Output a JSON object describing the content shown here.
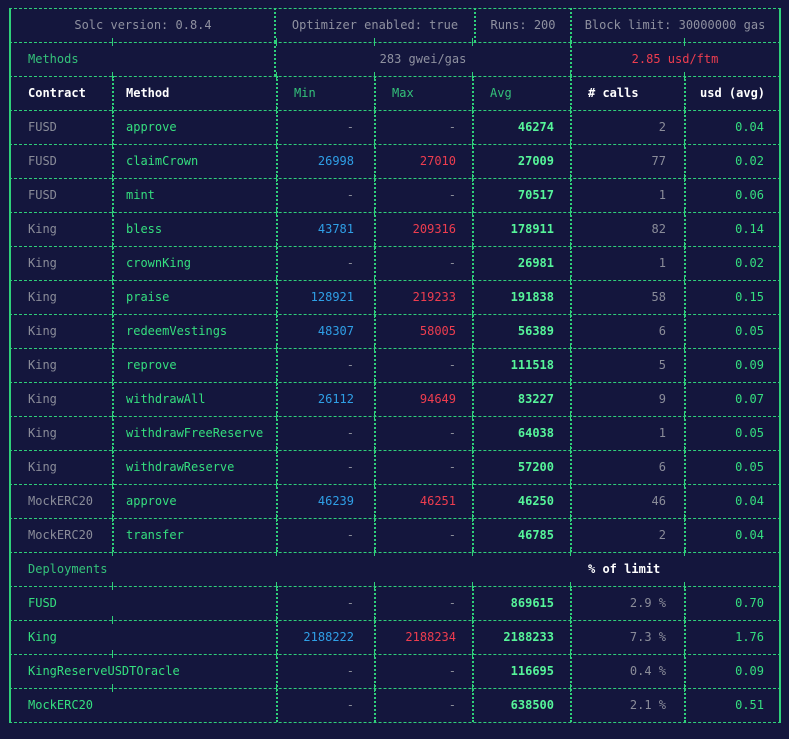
{
  "header": {
    "solc_version": "Solc version: 0.8.4",
    "optimizer": "Optimizer enabled: true",
    "runs": "Runs: 200",
    "block_limit": "Block limit: 30000000 gas"
  },
  "methods_bar": {
    "label": "Methods",
    "gas_price": "283 gwei/gas",
    "token_price": "2.85 usd/ftm"
  },
  "columns": {
    "contract": "Contract",
    "method": "Method",
    "min": "Min",
    "max": "Max",
    "avg": "Avg",
    "calls": "# calls",
    "usd": "usd (avg)"
  },
  "methods": [
    {
      "contract": "FUSD",
      "method": "approve",
      "min": "-",
      "max": "-",
      "avg": "46274",
      "calls": "2",
      "usd": "0.04"
    },
    {
      "contract": "FUSD",
      "method": "claimCrown",
      "min": "26998",
      "max": "27010",
      "avg": "27009",
      "calls": "77",
      "usd": "0.02"
    },
    {
      "contract": "FUSD",
      "method": "mint",
      "min": "-",
      "max": "-",
      "avg": "70517",
      "calls": "1",
      "usd": "0.06"
    },
    {
      "contract": "King",
      "method": "bless",
      "min": "43781",
      "max": "209316",
      "avg": "178911",
      "calls": "82",
      "usd": "0.14"
    },
    {
      "contract": "King",
      "method": "crownKing",
      "min": "-",
      "max": "-",
      "avg": "26981",
      "calls": "1",
      "usd": "0.02"
    },
    {
      "contract": "King",
      "method": "praise",
      "min": "128921",
      "max": "219233",
      "avg": "191838",
      "calls": "58",
      "usd": "0.15"
    },
    {
      "contract": "King",
      "method": "redeemVestings",
      "min": "48307",
      "max": "58005",
      "avg": "56389",
      "calls": "6",
      "usd": "0.05"
    },
    {
      "contract": "King",
      "method": "reprove",
      "min": "-",
      "max": "-",
      "avg": "111518",
      "calls": "5",
      "usd": "0.09"
    },
    {
      "contract": "King",
      "method": "withdrawAll",
      "min": "26112",
      "max": "94649",
      "avg": "83227",
      "calls": "9",
      "usd": "0.07"
    },
    {
      "contract": "King",
      "method": "withdrawFreeReserve",
      "min": "-",
      "max": "-",
      "avg": "64038",
      "calls": "1",
      "usd": "0.05"
    },
    {
      "contract": "King",
      "method": "withdrawReserve",
      "min": "-",
      "max": "-",
      "avg": "57200",
      "calls": "6",
      "usd": "0.05"
    },
    {
      "contract": "MockERC20",
      "method": "approve",
      "min": "46239",
      "max": "46251",
      "avg": "46250",
      "calls": "46",
      "usd": "0.04"
    },
    {
      "contract": "MockERC20",
      "method": "transfer",
      "min": "-",
      "max": "-",
      "avg": "46785",
      "calls": "2",
      "usd": "0.04"
    }
  ],
  "deployments_bar": {
    "label": "Deployments",
    "percent_label": "% of limit"
  },
  "deployments": [
    {
      "name": "FUSD",
      "min": "-",
      "max": "-",
      "avg": "869615",
      "percent": "2.9 %",
      "usd": "0.70"
    },
    {
      "name": "King",
      "min": "2188222",
      "max": "2188234",
      "avg": "2188233",
      "percent": "7.3 %",
      "usd": "1.76"
    },
    {
      "name": "KingReserveUSDTOracle",
      "min": "-",
      "max": "-",
      "avg": "116695",
      "percent": "0.4 %",
      "usd": "0.09"
    },
    {
      "name": "MockERC20",
      "min": "-",
      "max": "-",
      "avg": "638500",
      "percent": "2.1 %",
      "usd": "0.51"
    }
  ],
  "colors": {
    "background": "#14163d",
    "border": "#2fd07a",
    "method": "#35df7f",
    "min": "#2f9fe6",
    "max": "#ee3d4f",
    "muted": "#8a8c99"
  }
}
